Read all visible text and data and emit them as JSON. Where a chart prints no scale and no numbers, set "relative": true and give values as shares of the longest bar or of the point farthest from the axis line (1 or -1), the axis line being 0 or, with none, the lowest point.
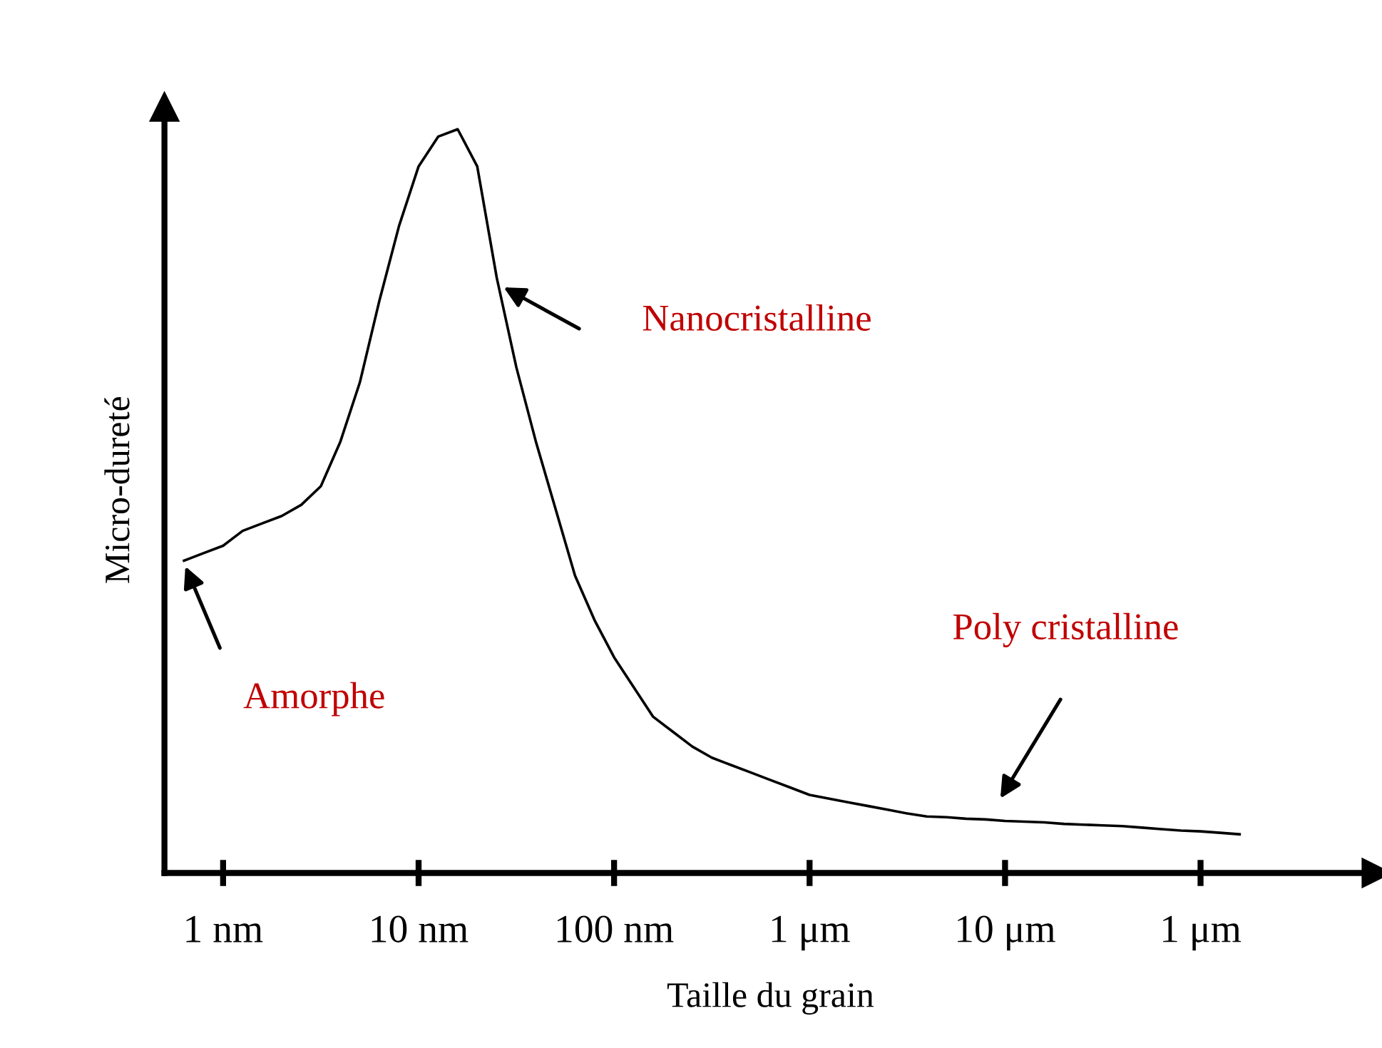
{
  "chart_data": {
    "type": "line",
    "relative": true,
    "xlabel": "Taille du grain",
    "ylabel": "Micro-dureté",
    "categories": [
      null,
      null,
      null,
      "1 nm",
      null,
      null,
      null,
      null,
      null,
      null,
      null,
      null,
      null,
      "10 nm",
      null,
      null,
      null,
      null,
      null,
      null,
      null,
      null,
      null,
      "100 nm",
      null,
      null,
      null,
      null,
      null,
      null,
      null,
      null,
      null,
      "1 μm",
      null,
      null,
      null,
      null,
      null,
      null,
      null,
      null,
      null,
      "10 μm",
      null,
      null,
      null,
      null,
      null,
      null,
      null,
      null,
      null,
      "1 μm",
      null,
      null,
      null,
      null,
      null,
      null,
      null,
      null,
      null
    ],
    "series": [
      {
        "color": "#000000",
        "values": [
          null,
          0.42,
          0.43,
          0.44,
          0.46,
          0.47,
          0.48,
          0.495,
          0.52,
          0.58,
          0.66,
          0.77,
          0.87,
          0.95,
          0.99,
          1.0,
          0.95,
          0.8,
          0.68,
          0.58,
          0.49,
          0.4,
          0.34,
          0.29,
          0.25,
          0.21,
          0.19,
          0.17,
          0.155,
          0.145,
          0.135,
          0.125,
          0.115,
          0.105,
          0.1,
          0.095,
          0.09,
          0.085,
          0.08,
          0.076,
          0.075,
          0.073,
          0.072,
          0.07,
          0.069,
          0.068,
          0.066,
          0.065,
          0.064,
          0.063,
          0.061,
          0.059,
          0.057,
          0.056,
          0.054,
          0.052,
          null,
          null,
          null,
          null,
          null,
          null,
          null
        ]
      }
    ],
    "annotations": [
      "Nanocristalline",
      "Amorphe",
      "Poly cristalline"
    ],
    "grid": false,
    "legend": false,
    "marker": "none",
    "line_style": "solid"
  }
}
